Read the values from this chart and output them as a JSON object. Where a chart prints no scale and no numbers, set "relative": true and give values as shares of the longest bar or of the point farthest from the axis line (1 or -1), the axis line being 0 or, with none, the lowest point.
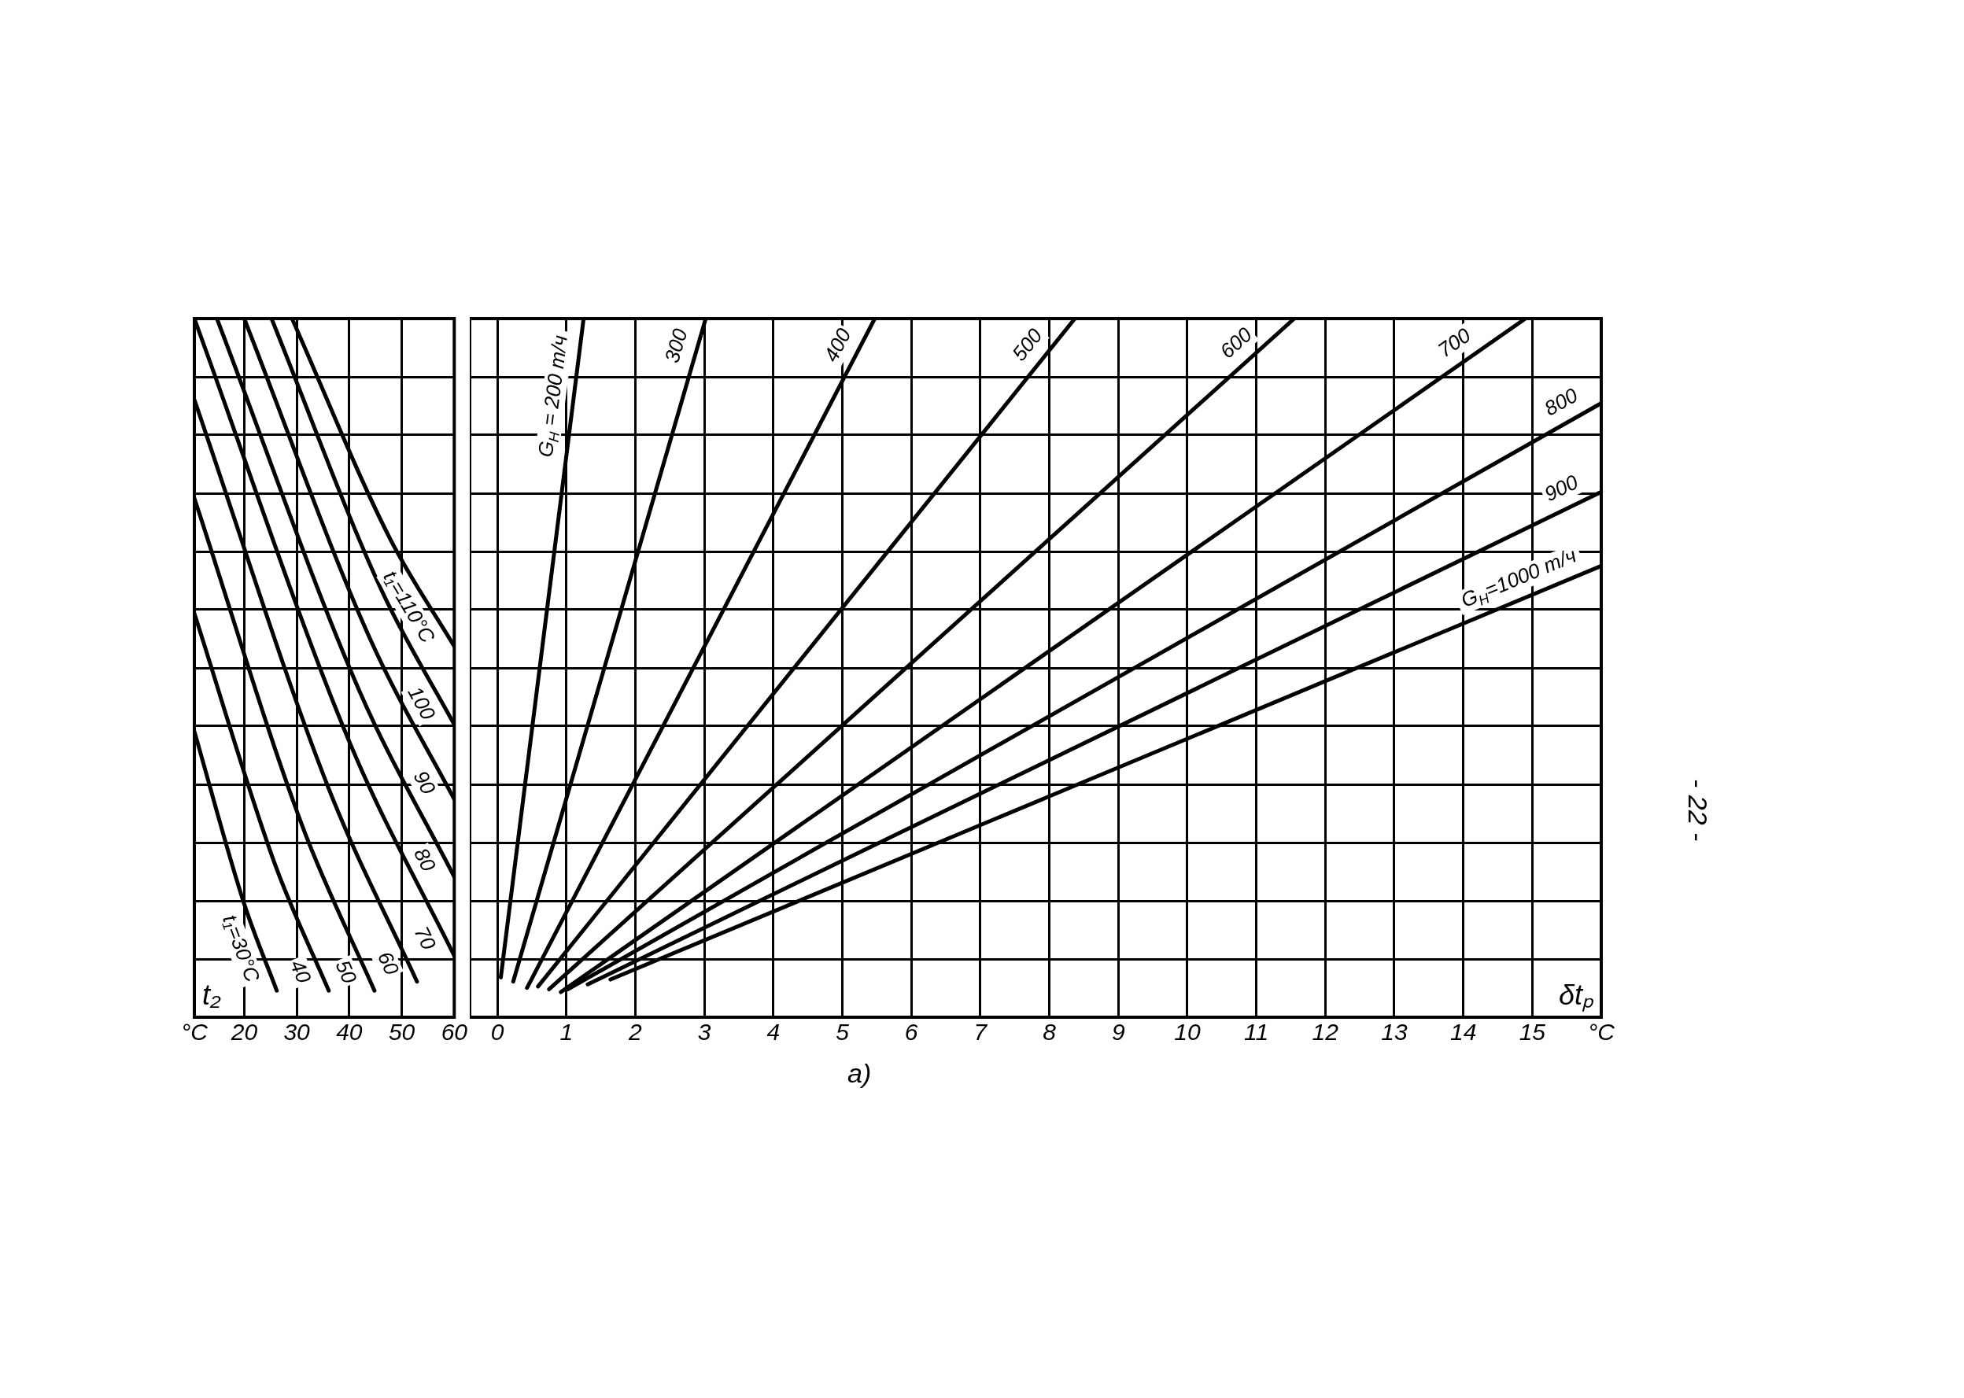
{
  "chart_data": [
    {
      "type": "line",
      "xlabel": "t₂",
      "relative": true,
      "grid": true,
      "marker": "none",
      "xlim": [
        10.5,
        60
      ],
      "xticks": [
        {
          "value": 10.5,
          "label": "°C"
        },
        20,
        30,
        40,
        50,
        60
      ],
      "series": [
        {
          "name": "t₁=30°C",
          "color": "#000000",
          "x": [
            10.5,
            20,
            26.2
          ],
          "values": [
            0.409,
            0.162,
            0.038
          ]
        },
        {
          "name": "40",
          "color": "#000000",
          "x": [
            10.5,
            25.9,
            36.1
          ],
          "values": [
            0.578,
            0.218,
            0.038
          ]
        },
        {
          "name": "50",
          "color": "#000000",
          "x": [
            10.5,
            31.1,
            44.8
          ],
          "values": [
            0.743,
            0.273,
            0.038
          ]
        },
        {
          "name": "60",
          "color": "#000000",
          "x": [
            10.5,
            36,
            52.9
          ],
          "values": [
            0.884,
            0.329,
            0.051
          ]
        },
        {
          "name": "70",
          "color": "#000000",
          "x": [
            10.5,
            40.2,
            60
          ],
          "values": [
            1.0,
            0.391,
            0.088
          ]
        },
        {
          "name": "80",
          "color": "#000000",
          "x": [
            14.8,
            42,
            60
          ],
          "values": [
            1.0,
            0.466,
            0.201
          ]
        },
        {
          "name": "90",
          "color": "#000000",
          "x": [
            20,
            44,
            60
          ],
          "values": [
            1.0,
            0.541,
            0.312
          ]
        },
        {
          "name": "100",
          "color": "#000000",
          "x": [
            25.2,
            46.1,
            60
          ],
          "values": [
            1.0,
            0.612,
            0.419
          ]
        },
        {
          "name": "t₁=110°C",
          "color": "#000000",
          "x": [
            29.1,
            47.7,
            60
          ],
          "values": [
            1.0,
            0.686,
            0.531
          ]
        }
      ]
    },
    {
      "type": "line",
      "xlabel": "δtₚ",
      "relative": true,
      "grid": true,
      "marker": "none",
      "xlim": [
        -0.4,
        16
      ],
      "xticks": [
        0,
        1,
        2,
        3,
        4,
        5,
        6,
        7,
        8,
        9,
        10,
        11,
        12,
        13,
        14,
        15,
        {
          "value": 16,
          "label": "°C"
        }
      ],
      "annotations": [
        "а)",
        "- 22 -"
      ],
      "series": [
        {
          "name": "G$_{Н}$ = 200 т/ч",
          "color": "#000000",
          "x": [
            0.05,
            1.25
          ],
          "values": [
            0.057,
            1.0
          ]
        },
        {
          "name": "300",
          "color": "#000000",
          "x": [
            0.23,
            3.02
          ],
          "values": [
            0.051,
            1.0
          ]
        },
        {
          "name": "400",
          "color": "#000000",
          "x": [
            0.43,
            5.47
          ],
          "values": [
            0.042,
            1.0
          ]
        },
        {
          "name": "500",
          "color": "#000000",
          "x": [
            0.59,
            8.37
          ],
          "values": [
            0.044,
            1.0
          ]
        },
        {
          "name": "600",
          "color": "#000000",
          "x": [
            0.75,
            11.55
          ],
          "values": [
            0.04,
            1.0
          ]
        },
        {
          "name": "700",
          "color": "#000000",
          "x": [
            0.92,
            14.9
          ],
          "values": [
            0.036,
            1.0
          ]
        },
        {
          "name": "800",
          "color": "#000000",
          "x": [
            1.02,
            16
          ],
          "values": [
            0.04,
            0.879
          ]
        },
        {
          "name": "900",
          "color": "#000000",
          "x": [
            1.31,
            16
          ],
          "values": [
            0.047,
            0.752
          ]
        },
        {
          "name": "G$_{Н}$=1000 т/ч",
          "color": "#000000",
          "x": [
            1.64,
            16
          ],
          "values": [
            0.054,
            0.646
          ]
        }
      ]
    }
  ]
}
